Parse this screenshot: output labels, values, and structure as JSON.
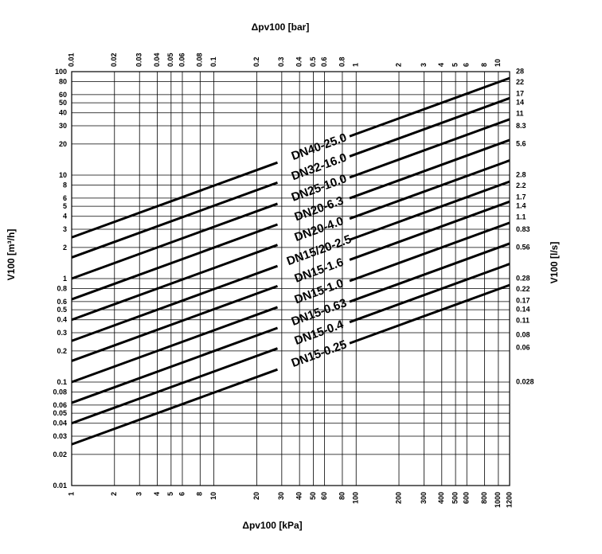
{
  "chart_data": {
    "type": "line",
    "log_x": true,
    "log_y": true,
    "grid": true,
    "x_bottom_label": "Δpv100 [kPa]",
    "x_top_label": "Δpv100 [bar]",
    "y_left_label": "V100 [m³/h]",
    "y_right_label": "V100 [l/s]",
    "xlim": [
      1,
      1200
    ],
    "ylim": [
      0.01,
      100
    ],
    "x_bottom_ticks": [
      "1",
      "2",
      "3",
      "4",
      "5",
      "6",
      "8",
      "10",
      "20",
      "30",
      "40",
      "50",
      "60",
      "80",
      "100",
      "200",
      "300",
      "400",
      "500",
      "600",
      "800",
      "1000",
      "1200"
    ],
    "x_top_ticks": [
      "0.01",
      "0.02",
      "0.03",
      "0.04",
      "0.05",
      "0.06",
      "0.08",
      "0.1",
      "0.2",
      "0.3",
      "0.4",
      "0.5",
      "0.6",
      "0.8",
      "1",
      "2",
      "3",
      "4",
      "5",
      "6",
      "8",
      "10"
    ],
    "y_left_ticks": [
      "0.01",
      "0.02",
      "0.03",
      "0.04",
      "0.05",
      "0.06",
      "0.08",
      "0.1",
      "0.2",
      "0.3",
      "0.4",
      "0.5",
      "0.6",
      "0.8",
      "1",
      "2",
      "3",
      "4",
      "5",
      "6",
      "8",
      "10",
      "20",
      "30",
      "40",
      "50",
      "60",
      "80",
      "100"
    ],
    "y_right_ticks": [
      "0.028",
      "0.06",
      "0.08",
      "0.11",
      "0.14",
      "0.17",
      "0.22",
      "0.28",
      "0.56",
      "0.83",
      "1.1",
      "1.4",
      "1.7",
      "2.2",
      "2.8",
      "5.6",
      "8.3",
      "11",
      "14",
      "17",
      "22",
      "28"
    ],
    "series": [
      {
        "name": "DN40-25.0",
        "kvs": 25.0
      },
      {
        "name": "DN32-16.0",
        "kvs": 16.0
      },
      {
        "name": "DN25-10.0",
        "kvs": 10.0
      },
      {
        "name": "DN20-6.3",
        "kvs": 6.3
      },
      {
        "name": "DN20-4.0",
        "kvs": 4.0
      },
      {
        "name": "DN15/20-2.5",
        "kvs": 2.5
      },
      {
        "name": "DN15-1.6",
        "kvs": 1.6
      },
      {
        "name": "DN15-1.0",
        "kvs": 1.0
      },
      {
        "name": "DN15-0.63",
        "kvs": 0.63
      },
      {
        "name": "DN15-0.4",
        "kvs": 0.4
      },
      {
        "name": "DN15-0.25",
        "kvs": 0.25
      }
    ]
  }
}
